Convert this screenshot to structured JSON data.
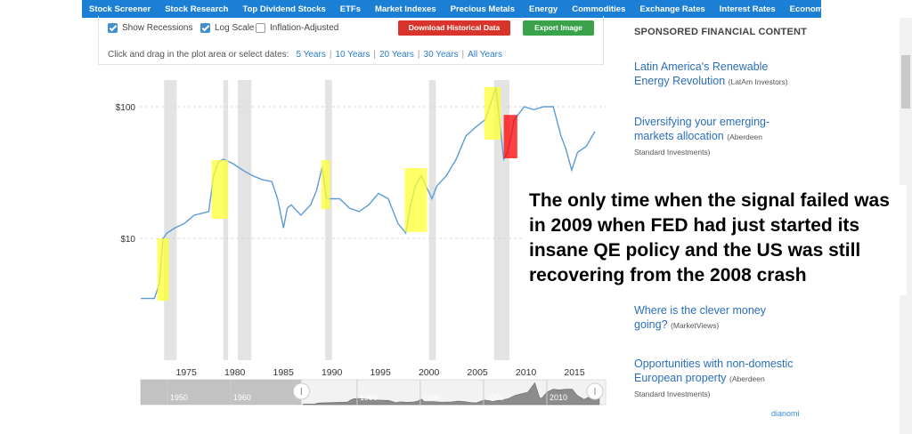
{
  "nav": {
    "items": [
      "Stock Screener",
      "Stock Research",
      "Top Dividend Stocks",
      "ETFs",
      "Market Indexes",
      "Precious Metals",
      "Energy",
      "Commodities",
      "Exchange Rates",
      "Interest Rates",
      "Economy"
    ]
  },
  "controls": {
    "checkboxes": [
      {
        "label": "Show Recessions",
        "checked": true
      },
      {
        "label": "Log Scale",
        "checked": true
      },
      {
        "label": "Inflation-Adjusted",
        "checked": false
      }
    ],
    "buttons": [
      "Download Historical Data",
      "Export Image"
    ],
    "prompt": "Click and drag in the plot area or select dates:",
    "ranges": [
      "5 Years",
      "10 Years",
      "20 Years",
      "30 Years",
      "All Years"
    ],
    "separator": "|"
  },
  "chart_data": {
    "type": "line",
    "log_scale": true,
    "grid": true,
    "xlim": [
      1971.4,
      2019.4
    ],
    "xticks": [
      1975,
      1980,
      1985,
      1990,
      1995,
      2000,
      2005,
      2010,
      2015
    ],
    "ylim": [
      1.19,
      159.5
    ],
    "yticks": [
      {
        "value": 10,
        "label": "$10"
      },
      {
        "value": 100,
        "label": "$100"
      }
    ],
    "x": [
      1971.5,
      1972.9,
      1973.4,
      1973.8,
      1974.2,
      1975,
      1976,
      1977,
      1978.5,
      1979,
      1979.5,
      1980,
      1981,
      1982,
      1983,
      1984,
      1985,
      1985.6,
      1986.2,
      1986.6,
      1987,
      1988,
      1989,
      1989.6,
      1990.2,
      1990.6,
      1991,
      1992,
      1993,
      1994,
      1995,
      1996,
      1997,
      1998,
      1998.8,
      1999.3,
      1999.8,
      2000.4,
      2001.5,
      2002,
      2003,
      2004,
      2005,
      2006,
      2007,
      2008.1,
      2008.9,
      2009.3,
      2010,
      2011,
      2012,
      2013,
      2014,
      2014.8,
      2015.3,
      2015.9,
      2016.5,
      2017.4,
      2018.3
    ],
    "series": [
      {
        "color": "#5b9bd5",
        "values": [
          3.5,
          3.5,
          4.5,
          10,
          11,
          12,
          13,
          15,
          16,
          30,
          38,
          40,
          37,
          33,
          30,
          28,
          27,
          20,
          12,
          17,
          18,
          15,
          18,
          23,
          35,
          20,
          20,
          20,
          17,
          16,
          18,
          22,
          20,
          13,
          11,
          18,
          25,
          30,
          20,
          25,
          30,
          40,
          60,
          70,
          80,
          140,
          40,
          45,
          80,
          100,
          95,
          100,
          100,
          60,
          48,
          33,
          45,
          50,
          65
        ]
      }
    ],
    "recessions": [
      [
        1973.9,
        1975.2
      ],
      [
        1980.0,
        1980.5
      ],
      [
        1981.5,
        1982.9
      ],
      [
        1990.5,
        1991.2
      ],
      [
        2001.2,
        2001.9
      ],
      [
        2007.9,
        2009.5
      ]
    ],
    "recession_color": "#e3e3e3",
    "highlights": [
      {
        "years": [
          1973.2,
          1974.4
        ],
        "value_range": [
          3.36,
          10
        ],
        "color": "#ffff33"
      },
      {
        "years": [
          1978.8,
          1980.5
        ],
        "value_range": [
          14.1,
          39.3
        ],
        "color": "#ffff33"
      },
      {
        "years": [
          1990.1,
          1991.0
        ],
        "value_range": [
          16.7,
          39.3
        ],
        "color": "#ffff33"
      },
      {
        "years": [
          1998.7,
          2001.0
        ],
        "value_range": [
          11.2,
          34.2
        ],
        "color": "#ffff33"
      },
      {
        "years": [
          2006.9,
          2008.6
        ],
        "value_range": [
          56.3,
          141
        ],
        "color": "#ffff33"
      },
      {
        "years": [
          2008.9,
          2010.3
        ],
        "value_range": [
          40.6,
          86.7
        ],
        "color": "#ff0000"
      }
    ],
    "navigator": {
      "xlim": [
        1945.8,
        2019.3
      ],
      "ylim": [
        0,
        160
      ],
      "selection": [
        1971.2,
        2017.6
      ],
      "labels": [
        {
          "value": 1950,
          "label": "1950"
        },
        {
          "value": 1960,
          "label": "1960"
        },
        {
          "value": 1980,
          "label": "1980"
        },
        {
          "value": 1990,
          "label": "1990"
        },
        {
          "value": 2000,
          "label": "2000"
        },
        {
          "value": 2010,
          "label": "2010"
        }
      ]
    }
  },
  "annotation": "The only time when the signal failed was in 2009 when FED had just started its insane QE policy and the US was still recovering from the 2008 crash",
  "sidebar": {
    "heading": "SPONSORED FINANCIAL CONTENT",
    "ads": [
      {
        "title": "Latin America's Renewable Energy Revolution",
        "source": "(LatAm Investors)"
      },
      {
        "title": "Diversifying your emerging-markets allocation",
        "source": "(Aberdeen Standard Investments)"
      },
      {
        "title": "Where is the clever money going?",
        "source": "(MarketViews)"
      },
      {
        "title": "Opportunities with non-domestic European property",
        "source": "(Aberdeen Standard Investments)"
      }
    ],
    "brand": "dianomi"
  }
}
